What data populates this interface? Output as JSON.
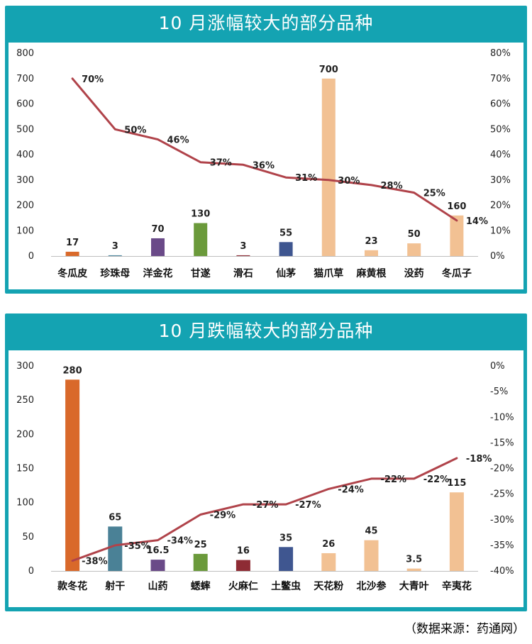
{
  "colors": {
    "panel": "#14a3b2",
    "line": "#b0434a",
    "text": "#222222"
  },
  "footer": {
    "source": "（数据来源：药通网）"
  },
  "chart_data": [
    {
      "type": "bar",
      "title": "10 月涨幅较大的部分品种",
      "categories": [
        "冬瓜皮",
        "珍珠母",
        "洋金花",
        "甘遂",
        "滑石",
        "仙茅",
        "猫爪草",
        "麻黄根",
        "没药",
        "冬瓜子"
      ],
      "values": [
        17,
        3,
        70,
        130,
        3,
        55,
        700,
        23,
        50,
        160
      ],
      "bar_labels": [
        "17",
        "3",
        "70",
        "130",
        "3",
        "55",
        "700",
        "23",
        "50",
        "160"
      ],
      "bar_colors": [
        "#d9692a",
        "#4f88a0",
        "#6a4a88",
        "#6b9a3b",
        "#8e2b34",
        "#3f5690",
        "#f2c193",
        "#f2c193",
        "#f2c193",
        "#f2c193"
      ],
      "line_values": [
        70,
        50,
        46,
        37,
        36,
        31,
        30,
        28,
        25,
        14
      ],
      "line_labels": [
        "70%",
        "50%",
        "46%",
        "37%",
        "36%",
        "31%",
        "30%",
        "28%",
        "25%",
        "14%"
      ],
      "ylim": [
        0,
        800
      ],
      "yticks": [
        "0",
        "100",
        "200",
        "300",
        "400",
        "500",
        "600",
        "700",
        "800"
      ],
      "y2lim": [
        0,
        80
      ],
      "y2ticks": [
        "0%",
        "10%",
        "20%",
        "30%",
        "40%",
        "50%",
        "60%",
        "70%",
        "80%"
      ],
      "grid": false
    },
    {
      "type": "bar",
      "title": "10 月跌幅较大的部分品种",
      "categories": [
        "款冬花",
        "射干",
        "山药",
        "蟋蟀",
        "火麻仁",
        "土鳖虫",
        "天花粉",
        "北沙参",
        "大青叶",
        "辛夷花"
      ],
      "values": [
        280,
        65,
        16.5,
        25,
        16,
        35,
        26,
        45,
        3.5,
        115
      ],
      "bar_labels": [
        "280",
        "65",
        "16.5",
        "25",
        "16",
        "35",
        "26",
        "45",
        "3.5",
        "115"
      ],
      "bar_colors": [
        "#d9692a",
        "#4a8196",
        "#6a4a88",
        "#6b9a3b",
        "#8e2b34",
        "#3f5690",
        "#f2c193",
        "#f2c193",
        "#f2c193",
        "#f2c193"
      ],
      "line_values": [
        -38,
        -35,
        -34,
        -29,
        -27,
        -27,
        -24,
        -22,
        -22,
        -18
      ],
      "line_labels": [
        "-38%",
        "-35%",
        "-34%",
        "-29%",
        "-27%",
        "-27%",
        "-24%",
        "-22%",
        "-22%",
        "-18%"
      ],
      "ylim": [
        0,
        300
      ],
      "yticks": [
        "0",
        "50",
        "100",
        "150",
        "200",
        "250",
        "300"
      ],
      "y2lim": [
        -40,
        0
      ],
      "y2ticks": [
        "0%",
        "-5%",
        "-10%",
        "-15%",
        "-20%",
        "-25%",
        "-30%",
        "-35%",
        "-40%"
      ],
      "grid": false
    }
  ]
}
